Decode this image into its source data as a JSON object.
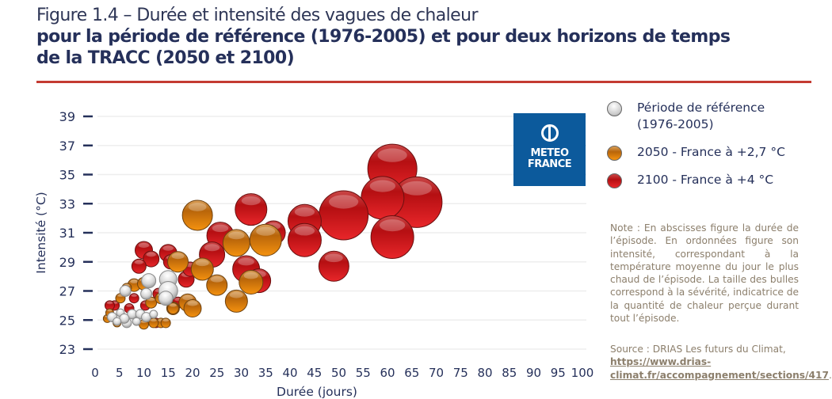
{
  "header": {
    "title_line1": "Figure 1.4 – Durée et intensité des vagues de chaleur",
    "title_line2": "pour la période de référence (1976-2005) et pour deux horizons de temps",
    "title_line3": "de la TRACC (2050 et 2100)"
  },
  "logo": {
    "line1": "METEO",
    "line2": "FRANCE",
    "color": "#0c5a9c"
  },
  "note": "Note : En abscisses figure la durée de l’épisode. En ordonnées figure son intensité, correspondant à la température moyenne du jour le plus chaud de l’épisode. La taille des bulles correspond à la sévérité, indicatrice de la quantité de chaleur perçue durant tout l’épisode.",
  "source": {
    "prefix": "Source : DRIAS Les futurs du Climat,",
    "link": "https://www.drias-climat.fr/accompagnement/sections/417",
    "suffix": "."
  },
  "chart_data": {
    "type": "scatter",
    "subtype": "bubble",
    "xlabel": "Durée (jours)",
    "ylabel": "Intensité (°C)",
    "xlim": [
      0,
      100
    ],
    "ylim": [
      23,
      39
    ],
    "xticks": [
      0,
      5,
      10,
      15,
      20,
      25,
      30,
      35,
      40,
      45,
      50,
      55,
      60,
      65,
      70,
      75,
      80,
      85,
      90,
      95,
      100
    ],
    "yticks": [
      23,
      25,
      27,
      29,
      31,
      33,
      35,
      37,
      39
    ],
    "grid": "horizontal",
    "legend_placement": "right",
    "point_format": [
      "duree_jours",
      "intensite_C",
      "relative_severity"
    ],
    "series": [
      {
        "name": "2100 - France à +4 °C",
        "color": "#d81e1e",
        "points": [
          [
            61,
            35.4,
            31
          ],
          [
            66,
            33.1,
            32
          ],
          [
            59,
            33.4,
            27
          ],
          [
            61,
            30.7,
            27
          ],
          [
            51,
            32.2,
            31
          ],
          [
            43,
            31.8,
            21
          ],
          [
            43,
            30.5,
            21
          ],
          [
            49,
            28.7,
            19
          ],
          [
            32,
            32.6,
            20
          ],
          [
            25.7,
            30.8,
            17
          ],
          [
            36.6,
            31,
            15
          ],
          [
            24,
            29.5,
            16
          ],
          [
            31,
            28.5,
            17
          ],
          [
            33.6,
            27.7,
            15
          ],
          [
            10,
            29.8,
            11
          ],
          [
            11.5,
            29.2,
            10
          ],
          [
            15,
            29.6,
            11
          ],
          [
            15.5,
            29,
            9
          ],
          [
            9,
            28.7,
            9
          ],
          [
            18.7,
            27.8,
            10
          ],
          [
            19.5,
            28.5,
            9
          ],
          [
            4,
            26,
            6
          ],
          [
            3,
            26,
            6
          ],
          [
            10.3,
            26,
            6
          ],
          [
            12.5,
            24.8,
            6
          ],
          [
            8,
            26.5,
            6
          ],
          [
            13,
            26.8,
            7
          ],
          [
            17,
            26.2,
            7
          ],
          [
            7,
            25.8,
            6
          ]
        ]
      },
      {
        "name": "2050 - France à +2,7 °C",
        "color": "#ee8a10",
        "points": [
          [
            21,
            32.2,
            19
          ],
          [
            29,
            30.3,
            17
          ],
          [
            35,
            30.5,
            20
          ],
          [
            22,
            28.5,
            14
          ],
          [
            32,
            27.6,
            15
          ],
          [
            25,
            27.4,
            13
          ],
          [
            29,
            26.3,
            14
          ],
          [
            17,
            29,
            13
          ],
          [
            19,
            26.2,
            11
          ],
          [
            20,
            25.8,
            11
          ],
          [
            16,
            25.8,
            8
          ],
          [
            13.5,
            24.8,
            6
          ],
          [
            14.5,
            24.8,
            6
          ],
          [
            8,
            27.4,
            8
          ],
          [
            5.2,
            26.5,
            6
          ],
          [
            11.5,
            26.2,
            7
          ],
          [
            16,
            25.8,
            7
          ],
          [
            2.5,
            25.1,
            5
          ],
          [
            4.5,
            24.8,
            5
          ],
          [
            10,
            24.7,
            6
          ],
          [
            12,
            24.8,
            6
          ],
          [
            6.5,
            27.2,
            6
          ],
          [
            10,
            27.5,
            8
          ],
          [
            13.5,
            26.5,
            7
          ],
          [
            3,
            25.5,
            5
          ]
        ]
      },
      {
        "name": "Période de référence (1976-2005)",
        "color": "#d9d9d9",
        "points": [
          [
            6.2,
            27,
            7
          ],
          [
            11,
            27.7,
            9
          ],
          [
            10.5,
            26.8,
            7
          ],
          [
            15,
            27.8,
            11
          ],
          [
            15,
            27,
            12
          ],
          [
            14.5,
            26.5,
            9
          ],
          [
            3.5,
            25.2,
            6
          ],
          [
            5.2,
            25.5,
            5
          ],
          [
            6.5,
            24.8,
            6
          ],
          [
            7.6,
            25.4,
            6
          ],
          [
            9.3,
            25.4,
            6
          ],
          [
            6,
            25.1,
            6
          ],
          [
            4.5,
            24.9,
            5
          ],
          [
            8.5,
            24.9,
            5
          ],
          [
            10.5,
            25.2,
            6
          ],
          [
            12,
            25.4,
            5
          ]
        ]
      }
    ]
  }
}
